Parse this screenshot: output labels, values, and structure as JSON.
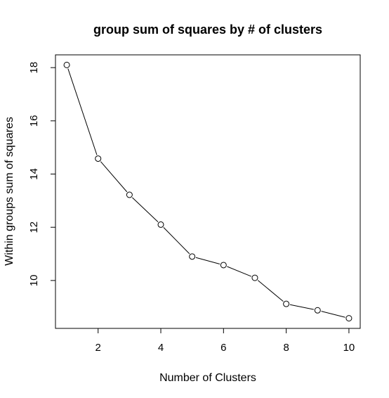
{
  "chart_data": {
    "type": "line",
    "title": "group sum of squares by # of clusters",
    "xlabel": "Number of Clusters",
    "ylabel": "Within groups sum of squares",
    "x": [
      1,
      2,
      3,
      4,
      5,
      6,
      7,
      8,
      9,
      10
    ],
    "series": [
      {
        "values": [
          18.1,
          14.58,
          13.22,
          12.1,
          10.9,
          10.58,
          10.1,
          9.12,
          8.88,
          8.58
        ]
      }
    ],
    "xticks": [
      2,
      4,
      6,
      8,
      10
    ],
    "yticks": [
      10,
      12,
      14,
      16,
      18
    ],
    "xlim": [
      0.64,
      10.36
    ],
    "ylim": [
      8.2,
      18.48
    ],
    "markers": "open-circle",
    "grid": false,
    "legend": "none",
    "line_color": "#000000"
  }
}
